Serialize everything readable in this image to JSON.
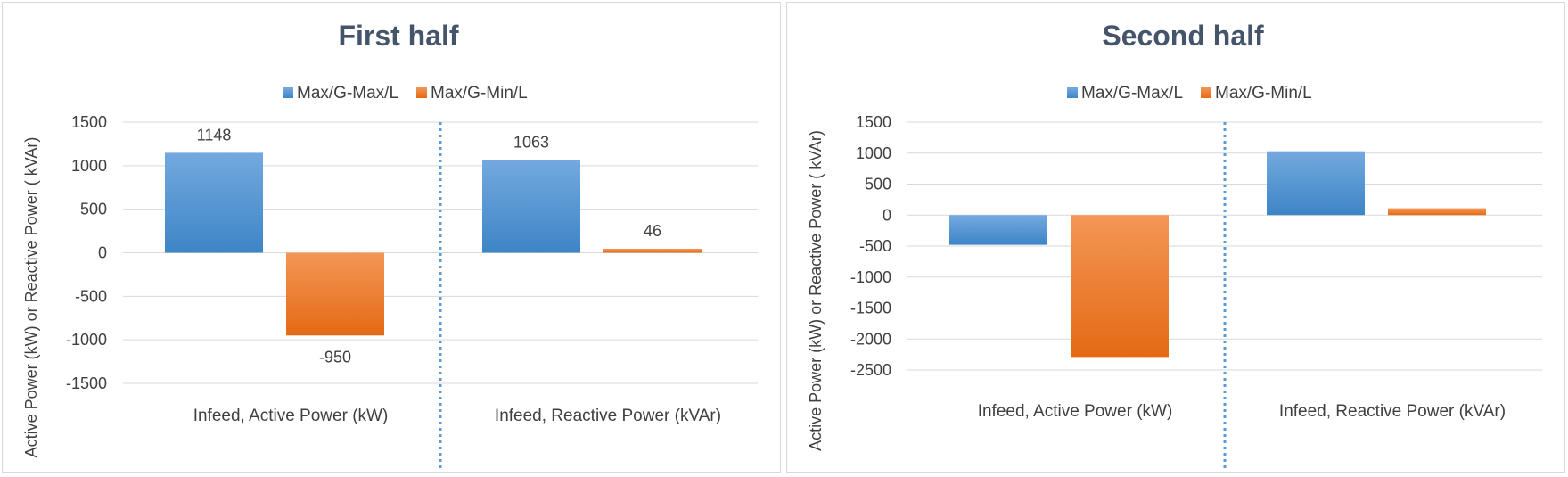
{
  "colors": {
    "series1": "#5b9bd5",
    "series1_dark": "#3d85c6",
    "series2": "#f47b20",
    "series2_dark": "#e46a14",
    "grid": "#d9d9d9",
    "divider": "#5b9bd5",
    "title": "#44546a"
  },
  "chart_data": [
    {
      "type": "bar",
      "title": "First half",
      "ylabel": "Active Power (kW) or  Reactive Power ( kVAr)",
      "categories": [
        "Infeed, Active Power (kW)",
        "Infeed, Reactive Power (kVAr)"
      ],
      "series": [
        {
          "name": "Max/G-Max/L",
          "values": [
            1148,
            1063
          ],
          "labels": [
            "1148",
            "1063"
          ]
        },
        {
          "name": "Max/G-Min/L",
          "values": [
            -950,
            46
          ],
          "labels": [
            "-950",
            "46"
          ]
        }
      ],
      "yticks": [
        "1500",
        "1000",
        "500",
        "0",
        "-500",
        "-1000",
        "-1500"
      ],
      "ylim": [
        -1500,
        1500
      ],
      "legend": "top",
      "grid": true,
      "category_divider": true
    },
    {
      "type": "bar",
      "title": "Second half",
      "ylabel": "Active Power (kW) or  Reactive Power ( kVAr)",
      "categories": [
        "Infeed, Active Power (kW)",
        "Infeed, Reactive Power (kVAr)"
      ],
      "series": [
        {
          "name": "Max/G-Max/L",
          "values": [
            -480,
            1030
          ]
        },
        {
          "name": "Max/G-Min/L",
          "values": [
            -2290,
            110
          ]
        }
      ],
      "yticks": [
        "1500",
        "1000",
        "500",
        "0",
        "-500",
        "-1000",
        "-1500",
        "-2000",
        "-2500"
      ],
      "ylim": [
        -2500,
        1500
      ],
      "legend": "top",
      "grid": true,
      "category_divider": true
    }
  ]
}
